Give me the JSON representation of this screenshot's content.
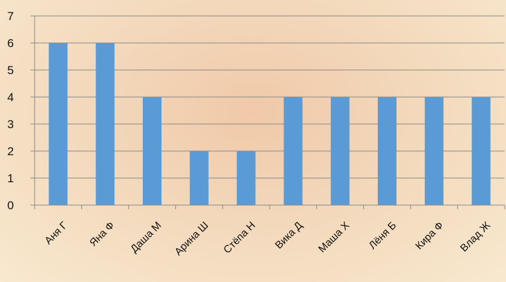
{
  "chart_data": {
    "type": "bar",
    "categories": [
      "Аня Г",
      "Яна Ф",
      "Даша М",
      "Арина Ш",
      "Стёпа Н",
      "Вика Д",
      "Маша Х",
      "Лёня Б",
      "Кира Ф",
      "Влад Ж"
    ],
    "values": [
      6,
      6,
      4,
      2,
      2,
      4,
      4,
      4,
      4,
      4
    ],
    "title": "",
    "xlabel": "",
    "ylabel": "",
    "ylim": [
      0,
      7
    ],
    "yticks": [
      0,
      1,
      2,
      3,
      4,
      5,
      6,
      7
    ],
    "grid": "horizontal",
    "legend": "none",
    "colors": {
      "bar": "#5b9bd5",
      "grid": "#8a8a8a",
      "axis": "#8a8a8a",
      "text": "#111111"
    }
  }
}
